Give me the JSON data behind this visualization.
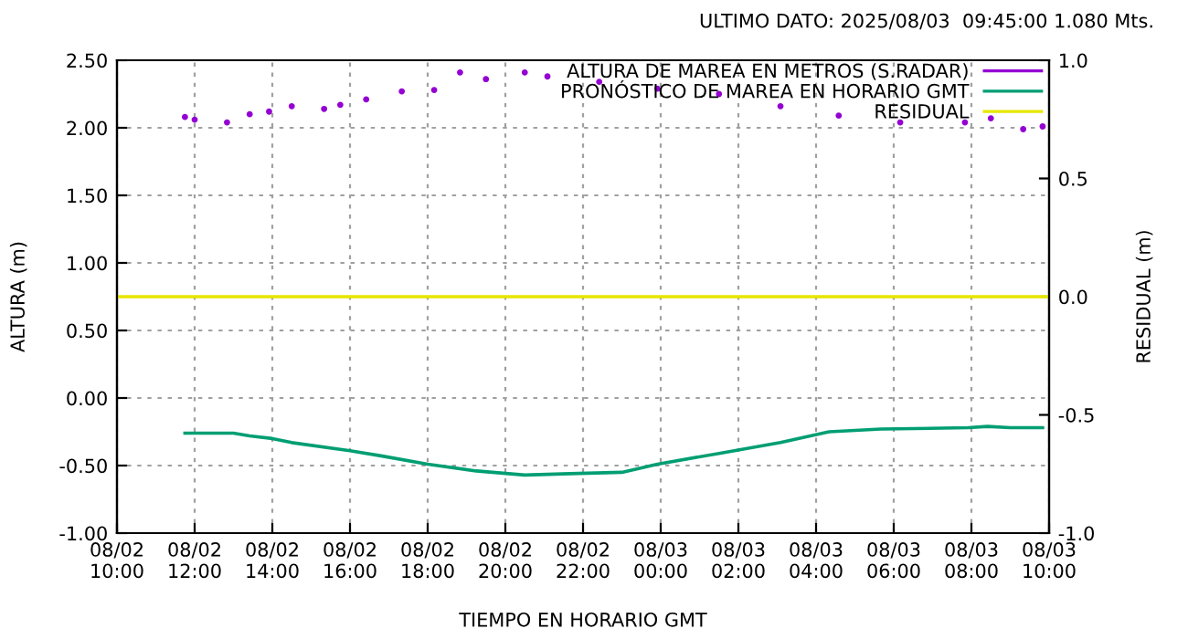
{
  "chart_data": {
    "type": "line",
    "title": "ULTIMO DATO: 2025/08/03  09:45:00 1.080 Mts.",
    "xlabel": "TIEMPO EN HORARIO GMT",
    "ylabel": "ALTURA (m)",
    "y2label": "RESIDUAL (m)",
    "xlim": [
      "2025-08-02T10:00",
      "2025-08-03T10:00"
    ],
    "xticks": [
      {
        "value": "2025-08-02T10:00",
        "label": "08/02\n10:00"
      },
      {
        "value": "2025-08-02T12:00",
        "label": "08/02\n12:00"
      },
      {
        "value": "2025-08-02T14:00",
        "label": "08/02\n14:00"
      },
      {
        "value": "2025-08-02T16:00",
        "label": "08/02\n16:00"
      },
      {
        "value": "2025-08-02T18:00",
        "label": "08/02\n18:00"
      },
      {
        "value": "2025-08-02T20:00",
        "label": "08/02\n20:00"
      },
      {
        "value": "2025-08-02T22:00",
        "label": "08/02\n22:00"
      },
      {
        "value": "2025-08-03T00:00",
        "label": "08/03\n00:00"
      },
      {
        "value": "2025-08-03T02:00",
        "label": "08/03\n02:00"
      },
      {
        "value": "2025-08-03T04:00",
        "label": "08/03\n04:00"
      },
      {
        "value": "2025-08-03T06:00",
        "label": "08/03\n06:00"
      },
      {
        "value": "2025-08-03T08:00",
        "label": "08/03\n08:00"
      },
      {
        "value": "2025-08-03T10:00",
        "label": "08/03\n10:00"
      }
    ],
    "ylim": [
      -1.0,
      2.5
    ],
    "yticks": [
      {
        "value": -1.0,
        "label": "-1.00"
      },
      {
        "value": -0.5,
        "label": "-0.50"
      },
      {
        "value": 0.0,
        "label": "0.00"
      },
      {
        "value": 0.5,
        "label": "0.50"
      },
      {
        "value": 1.0,
        "label": "1.00"
      },
      {
        "value": 1.5,
        "label": "1.50"
      },
      {
        "value": 2.0,
        "label": "2.00"
      },
      {
        "value": 2.5,
        "label": "2.50"
      }
    ],
    "y2lim": [
      -1.0,
      1.0
    ],
    "y2ticks": [
      {
        "value": -1.0,
        "label": "-1.0"
      },
      {
        "value": -0.5,
        "label": "-0.5"
      },
      {
        "value": 0.0,
        "label": "0.0"
      },
      {
        "value": 0.5,
        "label": "0.5"
      },
      {
        "value": 1.0,
        "label": "1.0"
      }
    ],
    "grid": true,
    "legend": "top right",
    "series": [
      {
        "name": "ALTURA DE MAREA EN METROS (S.RADAR)",
        "type": "scatter",
        "marker": "circle",
        "color": "#9400d3",
        "x": [
          "2025-08-02T11:45",
          "2025-08-02T12:00",
          "2025-08-02T12:50",
          "2025-08-02T13:25",
          "2025-08-02T13:55",
          "2025-08-02T14:30",
          "2025-08-02T15:20",
          "2025-08-02T15:45",
          "2025-08-02T16:25",
          "2025-08-02T17:20",
          "2025-08-02T18:10",
          "2025-08-02T18:50",
          "2025-08-02T19:30",
          "2025-08-02T20:30",
          "2025-08-02T21:05",
          "2025-08-02T22:25",
          "2025-08-02T23:55",
          "2025-08-03T01:30",
          "2025-08-03T03:05",
          "2025-08-03T04:35",
          "2025-08-03T06:10",
          "2025-08-03T07:50",
          "2025-08-03T08:30",
          "2025-08-03T09:20",
          "2025-08-03T09:50"
        ],
        "values": [
          2.08,
          2.06,
          2.04,
          2.1,
          2.12,
          2.16,
          2.14,
          2.17,
          2.21,
          2.27,
          2.28,
          2.41,
          2.36,
          2.41,
          2.38,
          2.34,
          2.29,
          2.25,
          2.16,
          2.09,
          2.04,
          2.04,
          2.07,
          1.99,
          2.01
        ]
      },
      {
        "name": "PRONÓSTICO DE MAREA EN HORARIO GMT",
        "color": "#009e73",
        "x": [
          "2025-08-02T11:45",
          "2025-08-02T13:00",
          "2025-08-02T13:25",
          "2025-08-02T14:00",
          "2025-08-02T14:30",
          "2025-08-02T16:00",
          "2025-08-02T16:50",
          "2025-08-02T18:00",
          "2025-08-02T19:15",
          "2025-08-02T20:30",
          "2025-08-02T21:40",
          "2025-08-02T23:00",
          "2025-08-02T23:55",
          "2025-08-03T01:30",
          "2025-08-03T03:05",
          "2025-08-03T04:20",
          "2025-08-03T05:40",
          "2025-08-03T07:55",
          "2025-08-03T08:25",
          "2025-08-03T09:00",
          "2025-08-03T09:50"
        ],
        "values": [
          -0.26,
          -0.26,
          -0.28,
          -0.3,
          -0.33,
          -0.39,
          -0.43,
          -0.49,
          -0.54,
          -0.57,
          -0.56,
          -0.55,
          -0.49,
          -0.41,
          -0.33,
          -0.25,
          -0.23,
          -0.22,
          -0.21,
          -0.22,
          -0.22
        ]
      },
      {
        "name": "RESIDUAL",
        "type": "line",
        "axis": "y2",
        "color": "#e6e600",
        "x": [
          "2025-08-02T10:00",
          "2025-08-03T10:00"
        ],
        "values": [
          0.0,
          0.0
        ]
      }
    ]
  }
}
